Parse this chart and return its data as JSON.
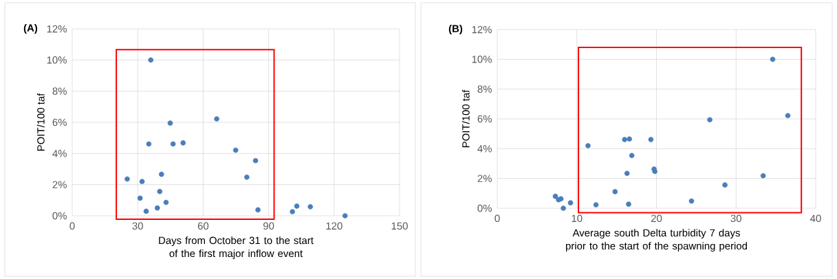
{
  "chart_data": [
    {
      "type": "scatter",
      "title": "(A)",
      "xlabel": "Days from October 31 to the start of the first major inflow event",
      "ylabel": "POIT/100 taf",
      "color": "#4a7ebb",
      "marker": "circle",
      "grid": true,
      "x": [
        36,
        66.2,
        44.9,
        35.1,
        46.2,
        50.8,
        74.9,
        84.0,
        25.2,
        32.0,
        40.9,
        80.0,
        40.1,
        31.1,
        43.0,
        39.0,
        33.9,
        85.1,
        100.9,
        102.9,
        109.1,
        125.0
      ],
      "values": [
        10.0,
        6.22,
        5.95,
        4.61,
        4.61,
        4.68,
        4.21,
        3.54,
        2.36,
        2.2,
        2.66,
        2.48,
        1.56,
        1.13,
        0.86,
        0.5,
        0.29,
        0.38,
        0.26,
        0.62,
        0.58,
        0.0
      ],
      "xlim": [
        0,
        150
      ],
      "xticks": [
        0,
        30,
        60,
        90,
        120,
        150
      ],
      "ylim": [
        0,
        12
      ],
      "yticks": [
        {
          "value": 0,
          "label": "0%"
        },
        {
          "value": 2,
          "label": "2%"
        },
        {
          "value": 4,
          "label": "4%"
        },
        {
          "value": 6,
          "label": "6%"
        },
        {
          "value": 8,
          "label": "8%"
        },
        {
          "value": 10,
          "label": "10%"
        },
        {
          "value": 12,
          "label": "12%"
        }
      ]
    },
    {
      "type": "scatter",
      "title": "(B)",
      "xlabel": "Average south Delta turbidity 7 days prior to the start of the spawning period",
      "ylabel": "POIT/100 taf",
      "color": "#4a7ebb",
      "marker": "circle",
      "grid": true,
      "x": [
        34.6,
        36.5,
        26.7,
        11.4,
        16.0,
        16.6,
        19.3,
        16.9,
        16.3,
        19.7,
        19.8,
        33.4,
        28.6,
        14.8,
        7.3,
        7.7,
        8.0,
        8.3,
        9.2,
        12.4,
        16.5,
        24.4
      ],
      "values": [
        10.0,
        6.22,
        5.94,
        4.2,
        4.61,
        4.65,
        4.61,
        3.54,
        2.34,
        2.63,
        2.47,
        2.18,
        1.56,
        1.11,
        0.8,
        0.57,
        0.63,
        0.0,
        0.36,
        0.23,
        0.27,
        0.48
      ],
      "xlim": [
        0,
        40
      ],
      "xticks": [
        0,
        10,
        20,
        30,
        40
      ],
      "ylim": [
        0,
        12
      ],
      "yticks": [
        {
          "value": 0,
          "label": "0%"
        },
        {
          "value": 2,
          "label": "2%"
        },
        {
          "value": 4,
          "label": "4%"
        },
        {
          "value": 6,
          "label": "6%"
        },
        {
          "value": 8,
          "label": "8%"
        },
        {
          "value": 10,
          "label": "10%"
        },
        {
          "value": 12,
          "label": "12%"
        }
      ]
    }
  ]
}
